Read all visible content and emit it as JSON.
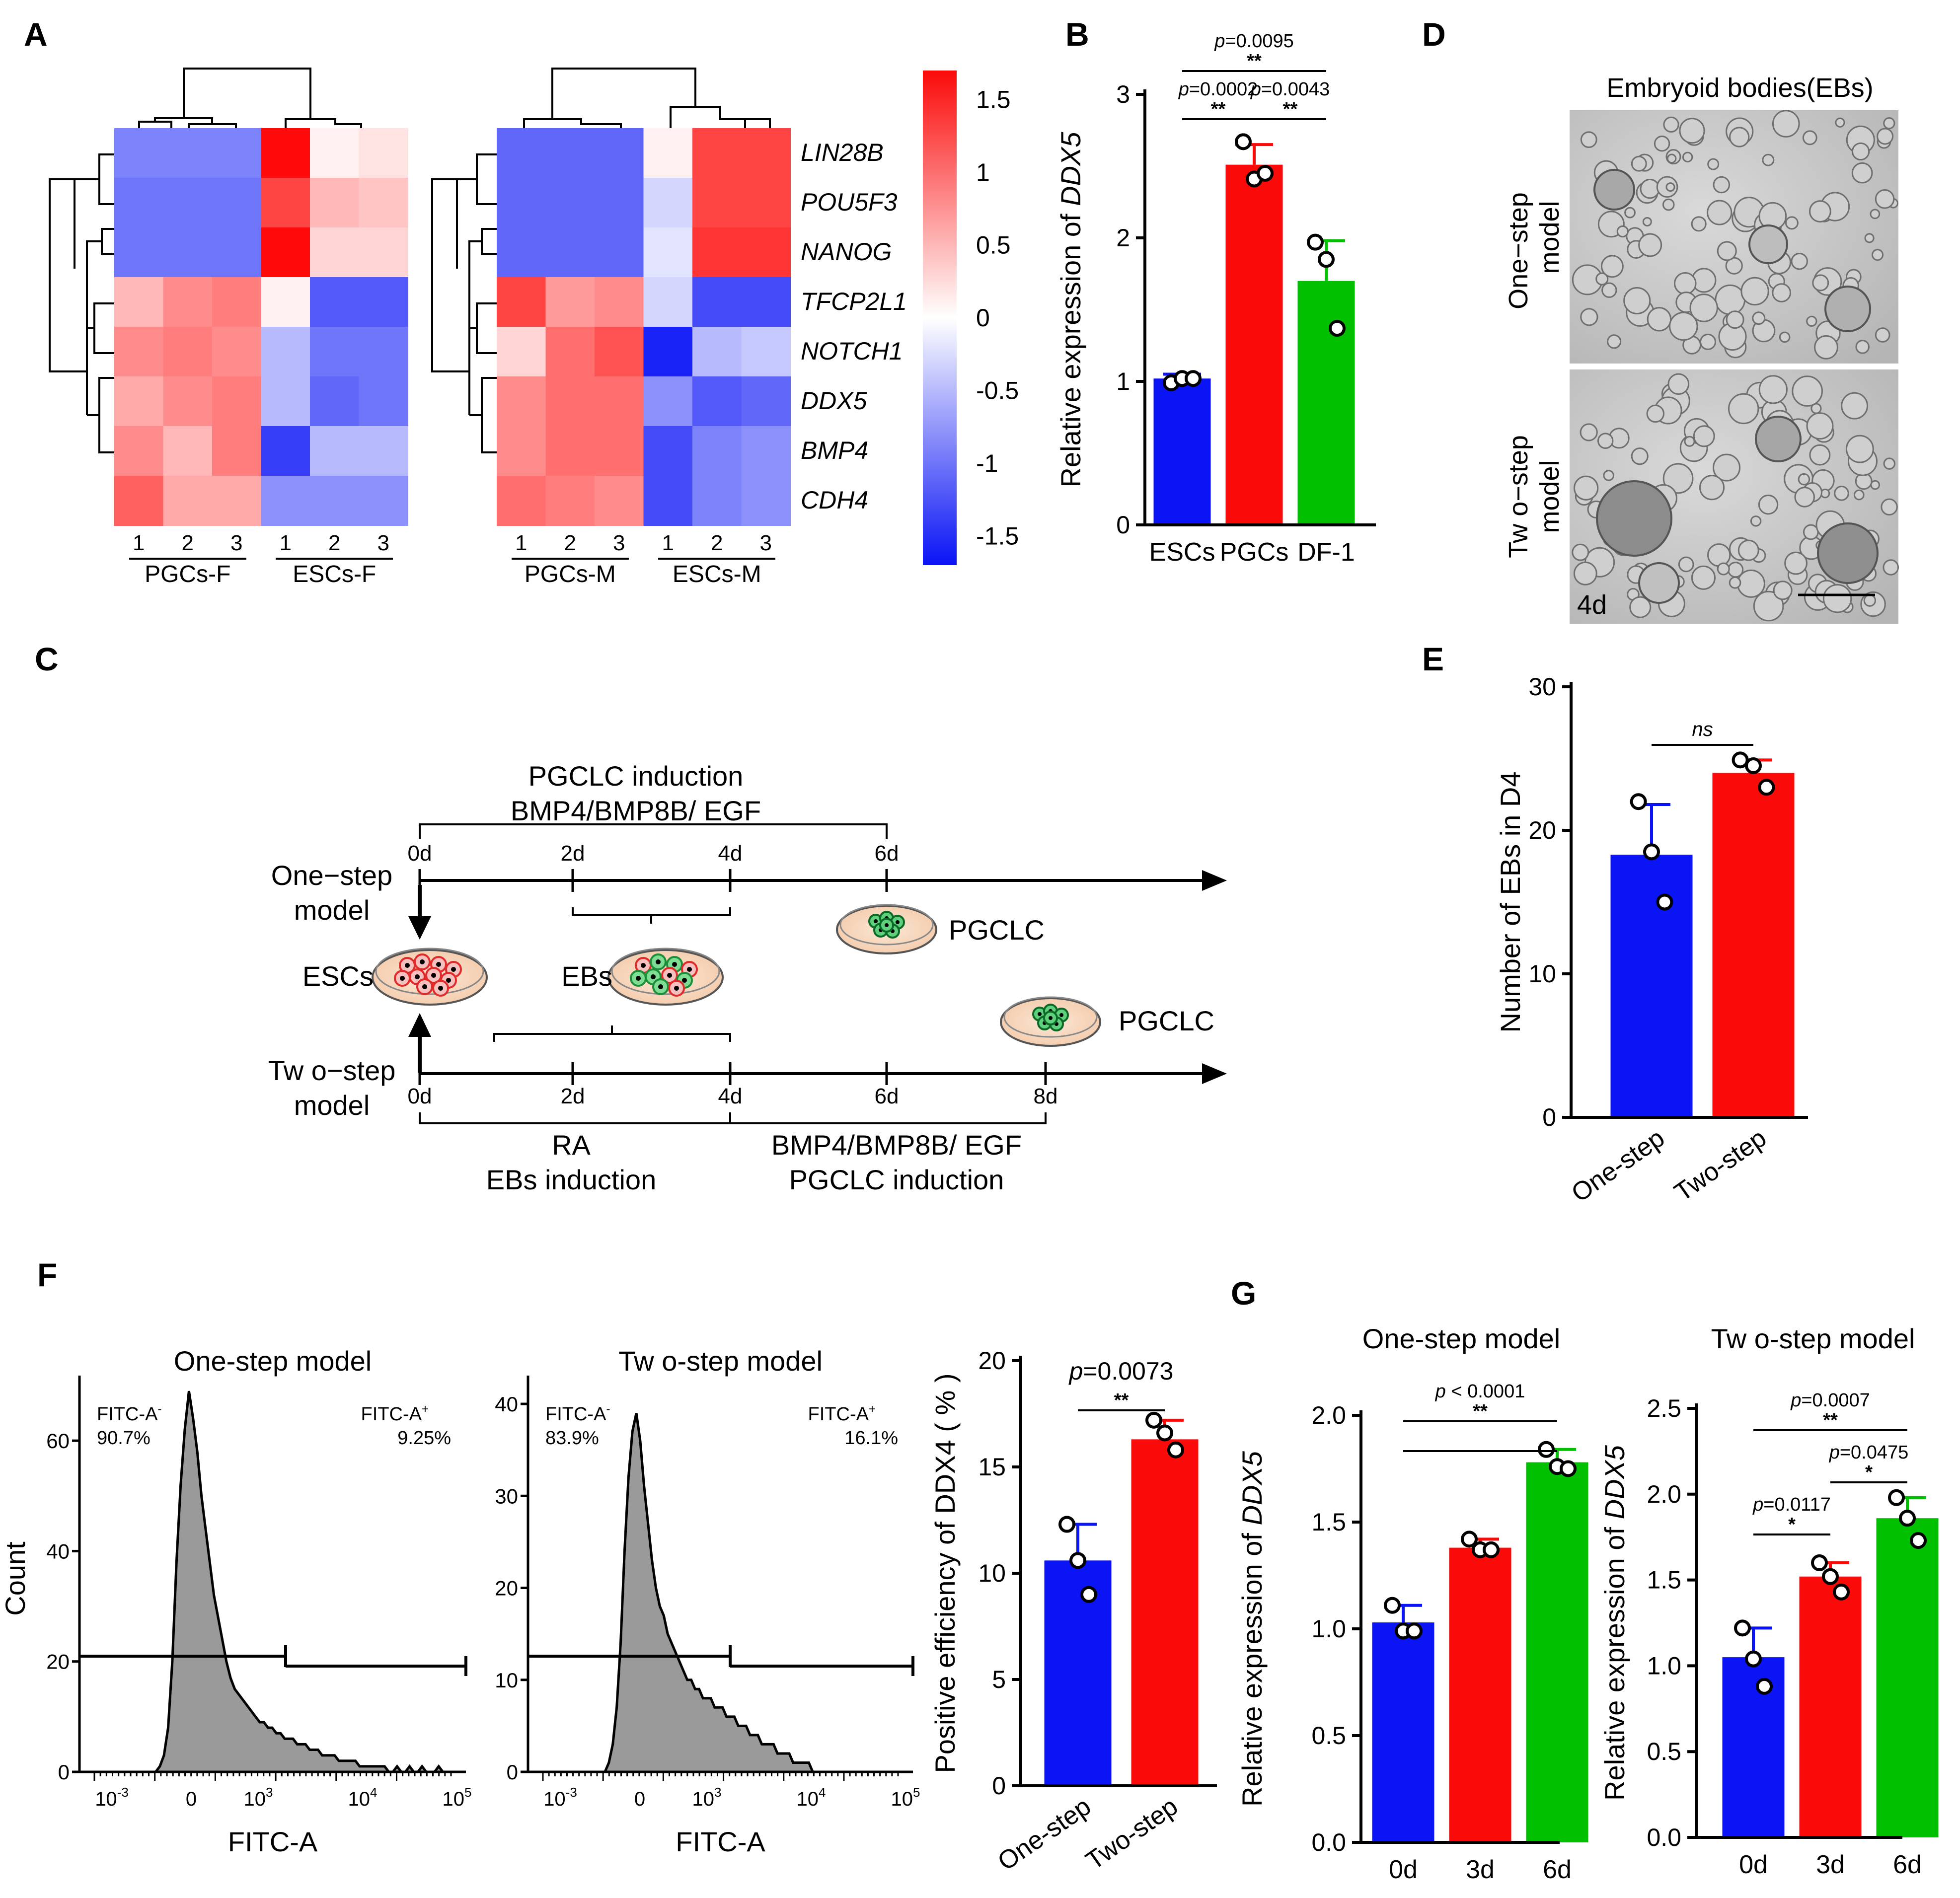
{
  "panel_labels": {
    "A": "A",
    "B": "B",
    "C": "C",
    "D": "D",
    "E": "E",
    "F": "F",
    "G": "G"
  },
  "colors": {
    "blue": "#0a14f5",
    "red": "#fb0a0a",
    "green": "#00c000",
    "dark_blue": "#1f1ff0",
    "strong_red": "#f50f0f",
    "white": "#ffffff"
  },
  "chart_data": [
    {
      "id": "A",
      "type": "heatmap",
      "title": "",
      "genes": [
        "LIN28B",
        "POU5F3",
        "NANOG",
        "TFCP2L1",
        "NOTCH1",
        "DDX5",
        "BMP4",
        "CDH4"
      ],
      "highlight_gene": "DDX5",
      "heatmaps": [
        {
          "name": "female",
          "columns": [
            "1",
            "2",
            "3",
            "1",
            "2",
            "3"
          ],
          "groups": [
            "PGCs-F",
            "ESCs-F"
          ],
          "values": [
            [
              -0.9,
              -0.9,
              -0.9,
              1.7,
              0.1,
              0.2
            ],
            [
              -1.0,
              -1.0,
              -1.0,
              1.3,
              0.5,
              0.4
            ],
            [
              -1.0,
              -1.0,
              -1.0,
              1.7,
              0.3,
              0.3
            ],
            [
              0.5,
              0.8,
              0.9,
              0.1,
              -1.2,
              -1.2
            ],
            [
              0.8,
              0.9,
              0.8,
              -0.5,
              -1.0,
              -1.0
            ],
            [
              0.6,
              0.8,
              0.9,
              -0.5,
              -1.1,
              -1.0
            ],
            [
              0.8,
              0.5,
              0.9,
              -1.4,
              -0.5,
              -0.5
            ],
            [
              1.1,
              0.6,
              0.6,
              -0.8,
              -0.8,
              -0.8
            ]
          ]
        },
        {
          "name": "male",
          "columns": [
            "1",
            "2",
            "3",
            "1",
            "2",
            "3"
          ],
          "groups": [
            "PGCs-M",
            "ESCs-M"
          ],
          "values": [
            [
              -1.1,
              -1.1,
              -1.1,
              0.1,
              1.3,
              1.3
            ],
            [
              -1.1,
              -1.1,
              -1.1,
              -0.3,
              1.3,
              1.3
            ],
            [
              -1.1,
              -1.1,
              -1.1,
              -0.2,
              1.4,
              1.4
            ],
            [
              1.3,
              0.7,
              0.8,
              -0.3,
              -1.3,
              -1.3
            ],
            [
              0.3,
              1.0,
              1.2,
              -1.6,
              -0.5,
              -0.4
            ],
            [
              0.8,
              1.0,
              1.0,
              -0.8,
              -1.2,
              -1.1
            ],
            [
              0.8,
              1.0,
              1.0,
              -1.3,
              -0.9,
              -0.8
            ],
            [
              1.0,
              0.9,
              0.8,
              -1.3,
              -0.9,
              -0.8
            ]
          ]
        }
      ],
      "colorbar": {
        "ticks": [
          "1.5",
          "1",
          "0.5",
          "0",
          "-0.5",
          "-1",
          "-1.5"
        ],
        "min": -1.7,
        "max": 1.7
      }
    },
    {
      "id": "B",
      "type": "bar",
      "categories": [
        "ESCs",
        "PGCs",
        "DF-1"
      ],
      "values": [
        1.02,
        2.51,
        1.7
      ],
      "errors": [
        0.03,
        0.14,
        0.28
      ],
      "points": [
        [
          0.99,
          1.02,
          1.02
        ],
        [
          2.67,
          2.41,
          2.45
        ],
        [
          1.97,
          1.85,
          1.37
        ]
      ],
      "colors": [
        "#0a14f5",
        "#fb0a0a",
        "#00c000"
      ],
      "ylabel": "Relative expression of ",
      "ylabel_gene": "DDX5",
      "ylim": [
        0,
        3
      ],
      "yticks": [
        "0",
        "1",
        "2",
        "3"
      ],
      "comparisons": [
        {
          "from": 0,
          "to": 2,
          "level": 2,
          "p_prefix": "p",
          "p": "=0.0095",
          "stars": "**"
        },
        {
          "from": 0,
          "to": 1,
          "level": 1,
          "p_prefix": "p",
          "p": "=0.0002",
          "stars": "**"
        },
        {
          "from": 1,
          "to": 2,
          "level": 1,
          "p_prefix": "p",
          "p": "=0.0043",
          "stars": "**"
        }
      ]
    },
    {
      "id": "E",
      "type": "bar",
      "categories": [
        "One-step",
        "Two-step"
      ],
      "values": [
        18.3,
        24.0
      ],
      "errors": [
        3.5,
        0.9
      ],
      "points": [
        [
          22.0,
          18.5,
          15.0
        ],
        [
          24.9,
          24.5,
          23.0
        ]
      ],
      "colors": [
        "#0a14f5",
        "#fb0a0a"
      ],
      "ylabel": "Number of EBs in D4",
      "ylim": [
        0,
        30
      ],
      "yticks": [
        "0",
        "10",
        "20",
        "30"
      ],
      "comparisons": [
        {
          "from": 0,
          "to": 1,
          "level": 1,
          "p_prefix": "",
          "p": "",
          "stars": "ns"
        }
      ]
    },
    {
      "id": "F_hist1",
      "type": "area",
      "title": "One-step model",
      "xlabel": "FITC-A",
      "ylabel": "Count",
      "ylim": [
        0,
        70
      ],
      "yticks": [
        "0",
        "20",
        "40",
        "60"
      ],
      "gate_neg": {
        "label": "FITC-A",
        "sign": "-",
        "value": "90.7%"
      },
      "gate_pos": {
        "label": "FITC-A",
        "sign": "+",
        "value": "9.25%"
      },
      "counts": [
        0,
        0,
        1,
        3,
        8,
        20,
        38,
        52,
        62,
        69,
        64,
        58,
        50,
        44,
        38,
        32,
        28,
        24,
        20,
        17,
        15,
        14,
        13,
        12,
        11,
        10,
        9,
        9,
        8,
        8,
        7,
        7,
        6,
        6,
        6,
        5,
        5,
        5,
        4,
        4,
        4,
        3,
        3,
        3,
        3,
        2,
        2,
        2,
        2,
        2,
        1,
        1,
        1,
        1,
        1,
        1,
        1,
        0,
        0,
        1,
        0,
        0,
        1,
        0,
        0,
        1,
        0,
        0,
        0,
        1,
        0,
        0
      ]
    },
    {
      "id": "F_hist2",
      "type": "area",
      "title": "Tw o-step model",
      "xlabel": "FITC-A",
      "ylabel": "",
      "ylim": [
        0,
        42
      ],
      "yticks": [
        "0",
        "10",
        "20",
        "30",
        "40"
      ],
      "gate_neg": {
        "label": "FITC-A",
        "sign": "-",
        "value": "83.9%"
      },
      "gate_pos": {
        "label": "FITC-A",
        "sign": "+",
        "value": "16.1%"
      },
      "counts": [
        0,
        0,
        1,
        3,
        7,
        14,
        24,
        32,
        37,
        39,
        36,
        31,
        27,
        23,
        20,
        18,
        17,
        15,
        14,
        13,
        12,
        11,
        10,
        10,
        9,
        9,
        8,
        8,
        8,
        7,
        7,
        7,
        6,
        6,
        6,
        5,
        5,
        5,
        4,
        4,
        4,
        3,
        3,
        3,
        3,
        2,
        2,
        2,
        2,
        1,
        1,
        1,
        1,
        1,
        0,
        0,
        0,
        0
      ]
    },
    {
      "id": "F_bar",
      "type": "bar",
      "categories": [
        "One-step",
        "Two-step"
      ],
      "values": [
        10.6,
        16.3
      ],
      "errors": [
        1.7,
        0.9
      ],
      "points": [
        [
          12.3,
          10.6,
          9.0
        ],
        [
          17.2,
          16.6,
          15.8
        ]
      ],
      "colors": [
        "#0a14f5",
        "#fb0a0a"
      ],
      "ylabel": "Positive efficiency of DDX4 ( % )",
      "ylim": [
        0,
        20
      ],
      "yticks": [
        "0",
        "5",
        "10",
        "15",
        "20"
      ],
      "comparisons": [
        {
          "from": 0,
          "to": 1,
          "level": 1,
          "p_prefix": "p",
          "p": "=0.0073",
          "stars": "**",
          "big": true
        }
      ]
    },
    {
      "id": "G1",
      "type": "bar",
      "title": "One-step model",
      "categories": [
        "0d",
        "3d",
        "6d"
      ],
      "values": [
        1.03,
        1.38,
        1.78
      ],
      "errors": [
        0.08,
        0.04,
        0.06
      ],
      "points": [
        [
          1.11,
          0.99,
          0.99
        ],
        [
          1.42,
          1.37,
          1.37
        ],
        [
          1.84,
          1.76,
          1.75
        ]
      ],
      "colors": [
        "#0a14f5",
        "#fb0a0a",
        "#00c000"
      ],
      "ylabel": "Relative expression of ",
      "ylabel_gene": "DDX5",
      "ylim": [
        0,
        2.0
      ],
      "yticks": [
        "0.0",
        "0.5",
        "1.0",
        "1.5",
        "2.0"
      ],
      "comparisons": [
        {
          "from": 0,
          "to": 2,
          "level": 2,
          "p_prefix": "p",
          "p": " < 0.0001",
          "stars": "**"
        },
        {
          "from": 0,
          "to": 1,
          "level": 1,
          "p_prefix": "",
          "p": "",
          "stars": ""
        },
        {
          "from": 1,
          "to": 2,
          "level": 1,
          "p_prefix": "",
          "p": "",
          "stars": ""
        }
      ]
    },
    {
      "id": "G2",
      "type": "bar",
      "title": "Tw o-step model",
      "categories": [
        "0d",
        "3d",
        "6d"
      ],
      "values": [
        1.05,
        1.52,
        1.86
      ],
      "errors": [
        0.17,
        0.08,
        0.12
      ],
      "points": [
        [
          1.22,
          1.04,
          0.88
        ],
        [
          1.6,
          1.52,
          1.43
        ],
        [
          1.98,
          1.86,
          1.73
        ]
      ],
      "colors": [
        "#0a14f5",
        "#fb0a0a",
        "#00c000"
      ],
      "ylabel": "Relative expression of ",
      "ylabel_gene": "DDX5",
      "ylim": [
        0,
        2.5
      ],
      "yticks": [
        "0.0",
        "0.5",
        "1.0",
        "1.5",
        "2.0",
        "2.5"
      ],
      "comparisons": [
        {
          "from": 0,
          "to": 2,
          "level": 3,
          "p_prefix": "p",
          "p": "=0.0007",
          "stars": "**"
        },
        {
          "from": 1,
          "to": 2,
          "level": 2,
          "p_prefix": "p",
          "p": "=0.0475",
          "stars": "*"
        },
        {
          "from": 0,
          "to": 1,
          "level": 1,
          "p_prefix": "p",
          "p": "=0.0117",
          "stars": "*"
        }
      ]
    }
  ],
  "panel_c": {
    "one_step_title": "PGCLC  induction",
    "one_step_factors": "BMP4/BMP8B/ EGF",
    "one_step_model": [
      "One−step",
      "model"
    ],
    "two_step_model": [
      "Tw o−step",
      "model"
    ],
    "one_step_days": [
      "0d",
      "2d",
      "4d",
      "6d"
    ],
    "two_step_days": [
      "0d",
      "2d",
      "4d",
      "6d",
      "8d"
    ],
    "escs": "ESCs",
    "ebs": "EBs",
    "pgclc_top": "PGCLC",
    "pgclc_bottom": "PGCLC",
    "ra": "RA",
    "ebs_induction": "EBs  induction",
    "two_step_factors": "BMP4/BMP8B/ EGF",
    "two_step_induction": "PGCLC  induction"
  },
  "panel_d": {
    "title": "Embryoid bodies(EBs)",
    "row1": [
      "One−step",
      "model"
    ],
    "row2": [
      "Tw o−step",
      "model"
    ],
    "day_label": "4d"
  }
}
